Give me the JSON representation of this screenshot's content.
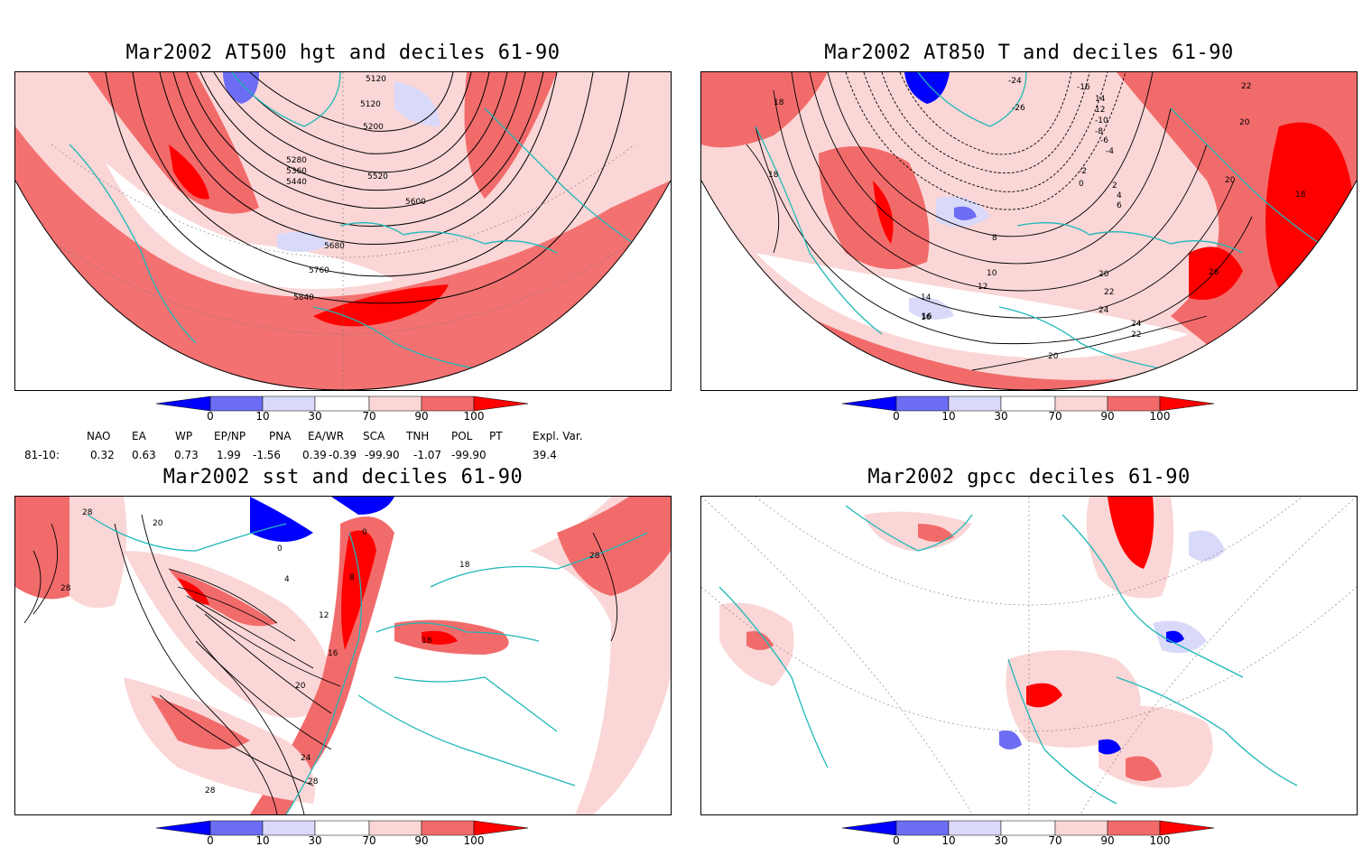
{
  "colors": {
    "deep_blue": "#0000ff",
    "mid_blue": "#6c6cf4",
    "light_blue": "#d9d9fa",
    "white": "#ffffff",
    "light_red": "#fbd6d6",
    "mid_red": "#f26b6b",
    "deep_red": "#ff0000",
    "coast": "#20b8b8"
  },
  "colorbar": {
    "ticks": [
      "0",
      "10",
      "30",
      "70",
      "90",
      "100"
    ]
  },
  "panels": {
    "p1": {
      "title": "Mar2002 AT500 hgt and deciles 61-90",
      "contour_labels": [
        "5120",
        "5120",
        "5200",
        "5280",
        "5360",
        "5440",
        "5520",
        "5600",
        "5680",
        "5760",
        "5840"
      ]
    },
    "p2": {
      "title": "Mar2002 AT850 T and deciles 61-90",
      "contour_labels": [
        "-24",
        "-16",
        "-26",
        "14",
        "12",
        "-10",
        "-8",
        "-6",
        "-4",
        "-2",
        "0",
        "2",
        "4",
        "6",
        "8",
        "10",
        "12",
        "14",
        "16",
        "16",
        "18",
        "18",
        "18",
        "20",
        "20",
        "20",
        "20",
        "22",
        "22",
        "22",
        "24",
        "24",
        "26"
      ]
    },
    "p3": {
      "title": "Mar2002 sst and deciles 61-90",
      "contour_labels": [
        "28",
        "20",
        "28",
        "0",
        "0",
        "4",
        "8",
        "12",
        "16",
        "20",
        "24",
        "28",
        "28",
        "18",
        "18",
        "28"
      ]
    },
    "p4": {
      "title": "Mar2002 gpcc deciles 61-90",
      "contour_labels": []
    }
  },
  "indices": {
    "row_label": "81-10:",
    "columns": [
      {
        "name": "NAO",
        "value": "0.32"
      },
      {
        "name": "EA",
        "value": "0.63"
      },
      {
        "name": "WP",
        "value": "0.73"
      },
      {
        "name": "EP/NP",
        "value": "1.99"
      },
      {
        "name": "PNA",
        "value": "-1.56"
      },
      {
        "name": "EA/WR",
        "value": "0.39"
      },
      {
        "name": "SCA",
        "value": "-0.39"
      },
      {
        "name": "TNH",
        "value": "-99.90"
      },
      {
        "name": "POL",
        "value": "-1.07"
      },
      {
        "name": "PT",
        "value": "-99.90"
      },
      {
        "name": "Expl. Var.",
        "value": "39.4"
      }
    ]
  }
}
